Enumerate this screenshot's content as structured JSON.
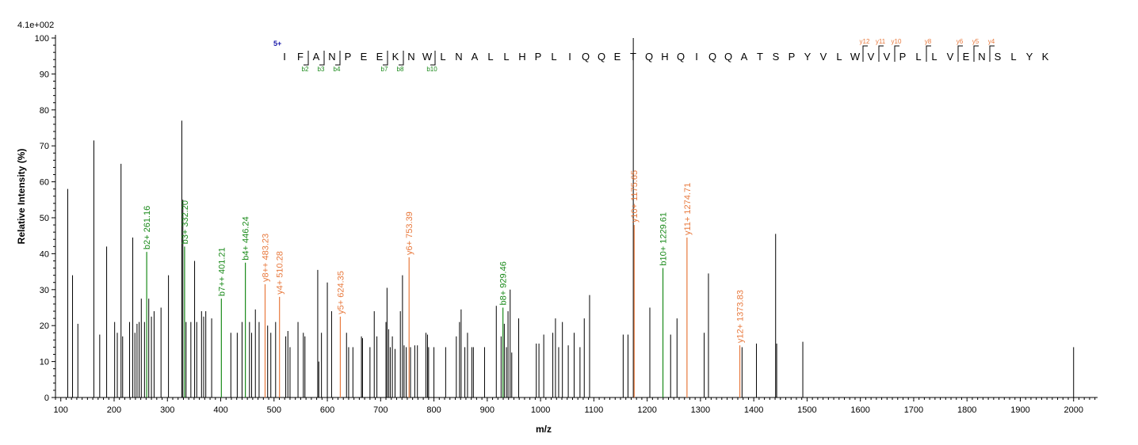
{
  "chart_data": {
    "type": "bar",
    "max_intensity_label": "4.1e+002",
    "xlabel": "m/z",
    "ylabel": "Relative   Intensity (%)",
    "xlim": [
      90,
      2045
    ],
    "ylim": [
      0,
      100
    ],
    "xticks": [
      100,
      200,
      300,
      400,
      500,
      600,
      700,
      800,
      900,
      1000,
      1100,
      1200,
      1300,
      1400,
      1500,
      1600,
      1700,
      1800,
      1900,
      2000
    ],
    "yticks": [
      0,
      10,
      20,
      30,
      40,
      50,
      60,
      70,
      80,
      90,
      100
    ],
    "grid": false,
    "charge_label": "5+",
    "sequence": [
      "I",
      "F",
      "A",
      "N",
      "P",
      "E",
      "E",
      "K",
      "N",
      "W",
      "L",
      "N",
      "A",
      "L",
      "L",
      "H",
      "P",
      "L",
      "I",
      "Q",
      "Q",
      "E",
      "T",
      "Q",
      "H",
      "Q",
      "I",
      "Q",
      "Q",
      "A",
      "T",
      "S",
      "P",
      "Y",
      "V",
      "L",
      "W",
      "V",
      "V",
      "P",
      "L",
      "L",
      "V",
      "E",
      "N",
      "S",
      "L",
      "Y",
      "K"
    ],
    "b_ions": [
      {
        "label": "b2",
        "after": 2
      },
      {
        "label": "b3",
        "after": 3
      },
      {
        "label": "b4",
        "after": 4
      },
      {
        "label": "b7",
        "after": 7
      },
      {
        "label": "b8",
        "after": 8
      },
      {
        "label": "b10",
        "after": 10
      }
    ],
    "y_ions": [
      {
        "label": "y12",
        "before": 37
      },
      {
        "label": "y11",
        "before": 38
      },
      {
        "label": "y10",
        "before": 39
      },
      {
        "label": "y8",
        "before": 41
      },
      {
        "label": "y6",
        "before": 43
      },
      {
        "label": "y5",
        "before": 44
      },
      {
        "label": "y4",
        "before": 45
      }
    ],
    "annotated_peaks": [
      {
        "mz": 261.16,
        "intensity": 40.5,
        "label": "b2+ 261.16",
        "ion": "b"
      },
      {
        "mz": 332.2,
        "intensity": 42,
        "label": "b3+ 332.20",
        "ion": "b"
      },
      {
        "mz": 401.21,
        "intensity": 27.5,
        "label": "b7++ 401.21",
        "ion": "b"
      },
      {
        "mz": 446.24,
        "intensity": 37.5,
        "label": "b4+ 446.24",
        "ion": "b"
      },
      {
        "mz": 483.23,
        "intensity": 31.5,
        "label": "y8++ 483.23",
        "ion": "y"
      },
      {
        "mz": 510.28,
        "intensity": 28,
        "label": "y4+ 510.28",
        "ion": "y"
      },
      {
        "mz": 624.35,
        "intensity": 22.5,
        "label": "y5+ 624.35",
        "ion": "y"
      },
      {
        "mz": 753.39,
        "intensity": 39,
        "label": "y6+ 753.39",
        "ion": "y"
      },
      {
        "mz": 929.46,
        "intensity": 25,
        "label": "b8+ 929.46",
        "ion": "b"
      },
      {
        "mz": 1175.65,
        "intensity": 48,
        "label": "y10+ 1175.65",
        "ion": "y"
      },
      {
        "mz": 1229.61,
        "intensity": 36,
        "label": "b10+ 1229.61",
        "ion": "b"
      },
      {
        "mz": 1274.71,
        "intensity": 44.5,
        "label": "y11+ 1274.71",
        "ion": "y"
      },
      {
        "mz": 1373.83,
        "intensity": 14.5,
        "label": "y12+ 1373.83",
        "ion": "y"
      }
    ],
    "peaks": [
      [
        113,
        58
      ],
      [
        122,
        34
      ],
      [
        132,
        20.5
      ],
      [
        162,
        71.5
      ],
      [
        173,
        17.5
      ],
      [
        186,
        42
      ],
      [
        201,
        21
      ],
      [
        206,
        18
      ],
      [
        213,
        65
      ],
      [
        216,
        17
      ],
      [
        229,
        21
      ],
      [
        235,
        44.5
      ],
      [
        239,
        18
      ],
      [
        243,
        20.5
      ],
      [
        247,
        21
      ],
      [
        251,
        27.5
      ],
      [
        257,
        21
      ],
      [
        265,
        27.5
      ],
      [
        270,
        22.5
      ],
      [
        275,
        24
      ],
      [
        288,
        25
      ],
      [
        302,
        34
      ],
      [
        327,
        77
      ],
      [
        329,
        55
      ],
      [
        335,
        21
      ],
      [
        344,
        21
      ],
      [
        351,
        38
      ],
      [
        355,
        21
      ],
      [
        364,
        24
      ],
      [
        368,
        22.5
      ],
      [
        372,
        24
      ],
      [
        383,
        22
      ],
      [
        419,
        18
      ],
      [
        431,
        18
      ],
      [
        440,
        21
      ],
      [
        454,
        21
      ],
      [
        458,
        18
      ],
      [
        465,
        24.5
      ],
      [
        472,
        21
      ],
      [
        488,
        20
      ],
      [
        494,
        18
      ],
      [
        503,
        21
      ],
      [
        522,
        17
      ],
      [
        526,
        18.5
      ],
      [
        530,
        14
      ],
      [
        545,
        21
      ],
      [
        555,
        18
      ],
      [
        558,
        17
      ],
      [
        582,
        35.5
      ],
      [
        584,
        10
      ],
      [
        589,
        18
      ],
      [
        600,
        32
      ],
      [
        608,
        24
      ],
      [
        636,
        18
      ],
      [
        640,
        14
      ],
      [
        648,
        14
      ],
      [
        664,
        17
      ],
      [
        666,
        16.5
      ],
      [
        680,
        14
      ],
      [
        688,
        24
      ],
      [
        693,
        17
      ],
      [
        710,
        21
      ],
      [
        712,
        30.5
      ],
      [
        715,
        19
      ],
      [
        718,
        14
      ],
      [
        722,
        17
      ],
      [
        727,
        13.5
      ],
      [
        737,
        24
      ],
      [
        741,
        34
      ],
      [
        744,
        14.5
      ],
      [
        748,
        14
      ],
      [
        756,
        14
      ],
      [
        764,
        14.5
      ],
      [
        769,
        14.5
      ],
      [
        785,
        18
      ],
      [
        788,
        17.5
      ],
      [
        790,
        14
      ],
      [
        800,
        14
      ],
      [
        822,
        14
      ],
      [
        842,
        17
      ],
      [
        848,
        21
      ],
      [
        851,
        24.5
      ],
      [
        858,
        14
      ],
      [
        863,
        18
      ],
      [
        871,
        14
      ],
      [
        874,
        14
      ],
      [
        895,
        14
      ],
      [
        917,
        25.5
      ],
      [
        926,
        17
      ],
      [
        932,
        20.5
      ],
      [
        936,
        14
      ],
      [
        939,
        24
      ],
      [
        943,
        30
      ],
      [
        946,
        12.5
      ],
      [
        959,
        22
      ],
      [
        992,
        15
      ],
      [
        997,
        15
      ],
      [
        1006,
        17.5
      ],
      [
        1023,
        18
      ],
      [
        1028,
        22
      ],
      [
        1034,
        14
      ],
      [
        1041,
        21
      ],
      [
        1052,
        14.5
      ],
      [
        1063,
        18
      ],
      [
        1074,
        14
      ],
      [
        1082,
        22
      ],
      [
        1092,
        28.5
      ],
      [
        1155,
        17.5
      ],
      [
        1164,
        17.5
      ],
      [
        1174,
        100
      ],
      [
        1205,
        25
      ],
      [
        1244,
        17.5
      ],
      [
        1256,
        22
      ],
      [
        1307,
        18
      ],
      [
        1315,
        34.5
      ],
      [
        1378,
        14
      ],
      [
        1405,
        15
      ],
      [
        1441,
        45.5
      ],
      [
        1443,
        15
      ],
      [
        1492,
        15.5
      ],
      [
        2000,
        14
      ]
    ]
  }
}
